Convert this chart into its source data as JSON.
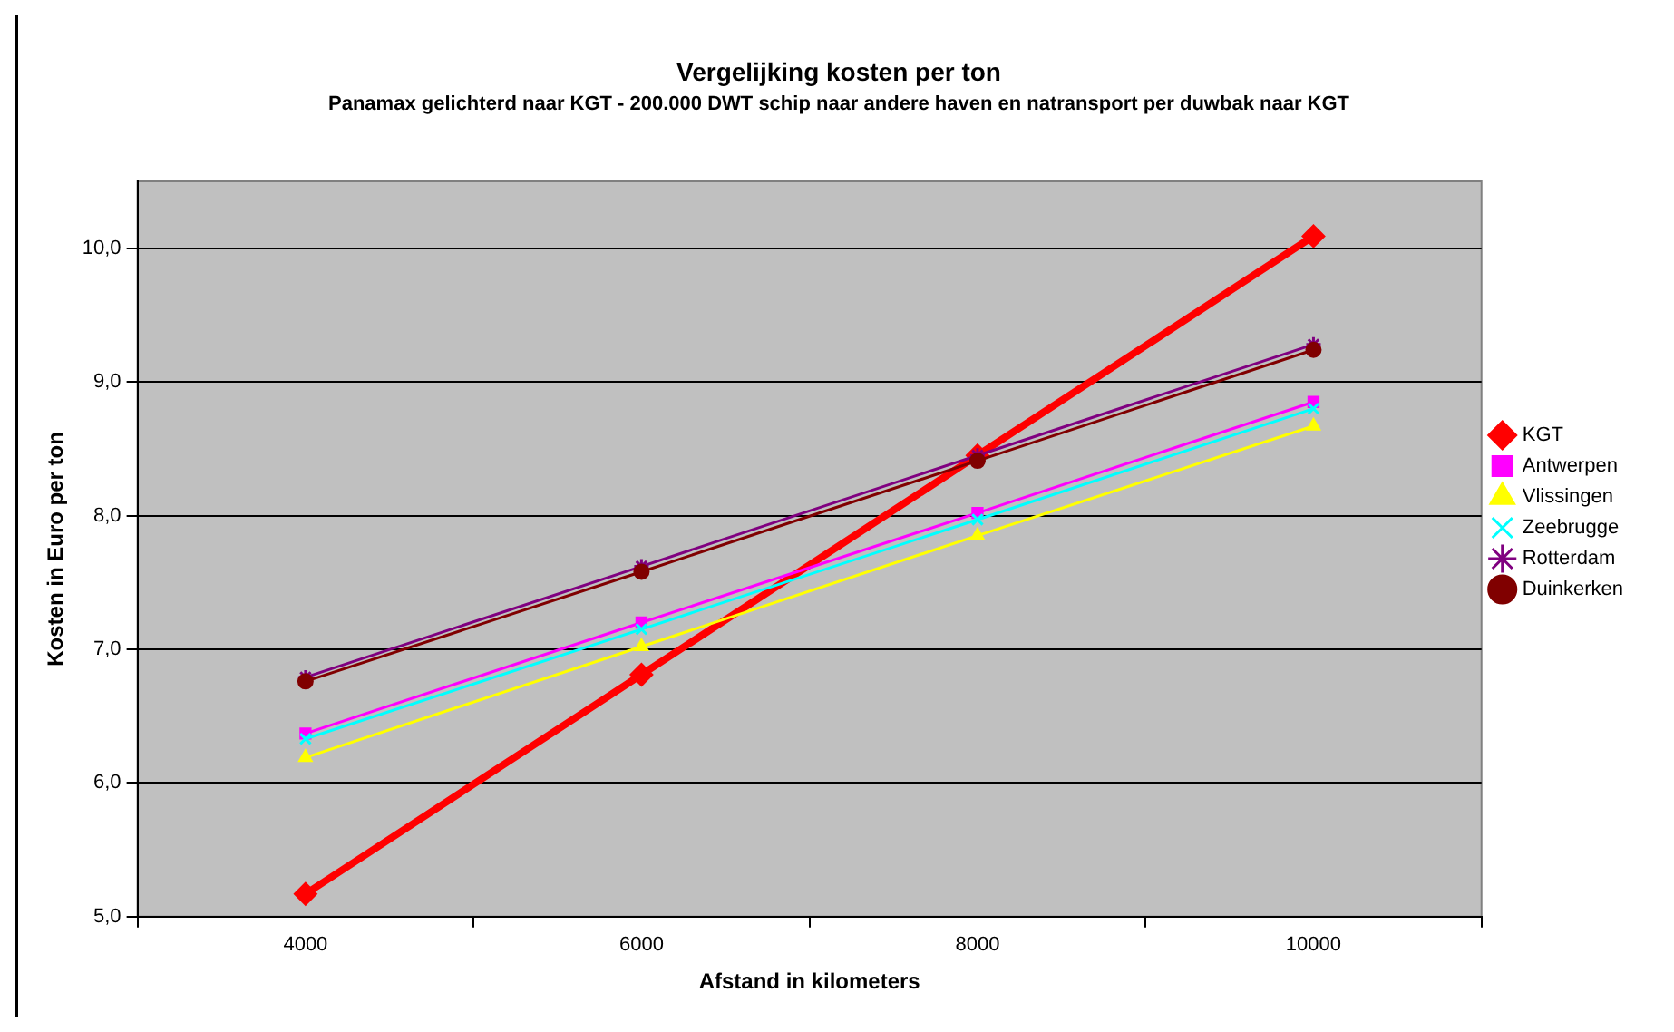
{
  "chart_data": {
    "type": "line",
    "title": "Vergelijking kosten per ton",
    "subtitle": "Panamax gelichterd naar KGT - 200.000 DWT schip naar andere haven en natransport per duwbak naar KGT",
    "xlabel": "Afstand in kilometers",
    "ylabel": "Kosten in Euro per ton",
    "categories": [
      "4000",
      "6000",
      "8000",
      "10000"
    ],
    "series": [
      {
        "name": "KGT",
        "color": "#ff0000",
        "marker": "diamond",
        "values": [
          5.17,
          6.81,
          8.45,
          10.09
        ]
      },
      {
        "name": "Antwerpen",
        "color": "#ff00ff",
        "marker": "square",
        "values": [
          6.37,
          7.2,
          8.02,
          8.85
        ]
      },
      {
        "name": "Vlissingen",
        "color": "#ffff00",
        "marker": "triangle",
        "values": [
          6.19,
          7.02,
          7.85,
          8.67
        ]
      },
      {
        "name": "Zeebrugge",
        "color": "#00ffff",
        "marker": "cross",
        "values": [
          6.33,
          7.15,
          7.97,
          8.8
        ]
      },
      {
        "name": "Rotterdam",
        "color": "#800080",
        "marker": "cross",
        "values": [
          6.79,
          7.62,
          8.45,
          9.28
        ]
      },
      {
        "name": "Duinkerken",
        "color": "#800000",
        "marker": "circle",
        "values": [
          6.76,
          7.58,
          8.41,
          9.24
        ]
      }
    ],
    "ylim": [
      5,
      10.5
    ],
    "yticks": [
      {
        "value": 5,
        "label": "5,0"
      },
      {
        "value": 6,
        "label": "6,0"
      },
      {
        "value": 7,
        "label": "7,0"
      },
      {
        "value": 8,
        "label": "8,0"
      },
      {
        "value": 9,
        "label": "9,0"
      },
      {
        "value": 10,
        "label": "10,0"
      }
    ],
    "grid": "y",
    "legend": "right",
    "line_style": "solid"
  }
}
